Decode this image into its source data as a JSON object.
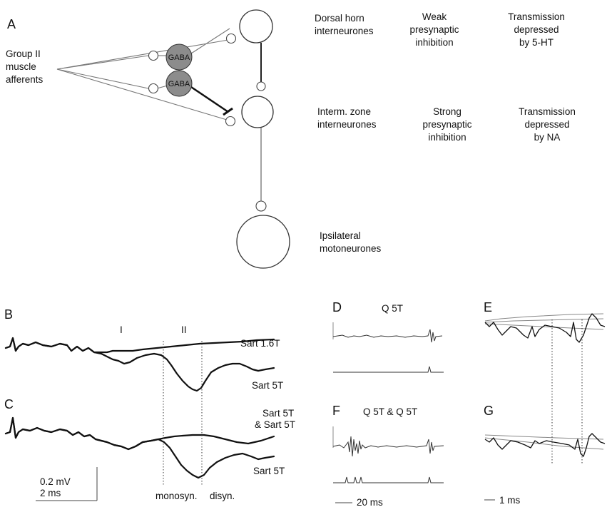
{
  "panels": {
    "a": "A",
    "b": "B",
    "c": "C",
    "d": "D",
    "e": "E",
    "f": "F",
    "g": "G"
  },
  "schematic": {
    "afferents_label": [
      "Group II",
      "muscle",
      "afferents"
    ],
    "gaba_label": "GABA",
    "dorsal": {
      "name": [
        "Dorsal horn",
        "interneurones"
      ],
      "inhibition": [
        "Weak",
        "presynaptic",
        "inhibition"
      ],
      "transmission": [
        "Transmission",
        "depressed",
        "by 5-HT"
      ]
    },
    "intermediate": {
      "name": [
        "Interm. zone",
        "interneurones"
      ],
      "inhibition": [
        "Strong",
        "presynaptic",
        "inhibition"
      ],
      "transmission": [
        "Transmission",
        "depressed",
        "by NA"
      ]
    },
    "motoneurones": [
      "Ipsilateral",
      "motoneurones"
    ]
  },
  "traces": {
    "component_I": "I",
    "component_II": "II",
    "b_top_label": "Sart 1.6T",
    "b_bottom_label": "Sart 5T",
    "c_top_label": [
      "Sart 5T",
      "& Sart 5T"
    ],
    "c_bottom_label": "Sart 5T",
    "scale_mv": "0.2 mV",
    "scale_ms": "2 ms",
    "monosyn": "monosyn.",
    "disyn": "disyn."
  },
  "recordings": {
    "d_title": "Q 5T",
    "f_title": "Q 5T & Q 5T",
    "scale_20ms": "20 ms",
    "scale_1ms": "1 ms"
  },
  "colors": {
    "gaba_fill": "#8c8c8c",
    "trace": "#111111",
    "grey_trace": "#888888"
  }
}
